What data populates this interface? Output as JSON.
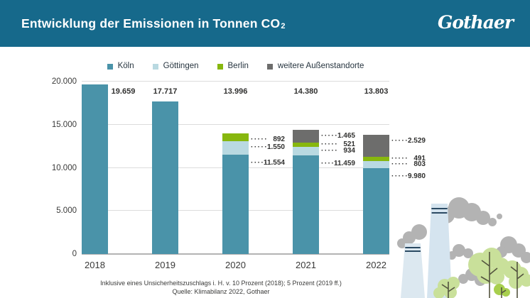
{
  "header": {
    "title": "Entwicklung der Emissionen in Tonnen CO",
    "title_sub": "2",
    "logo": "Gothaer"
  },
  "chart_data": {
    "type": "bar",
    "variant": "stacked",
    "title": "Entwicklung der Emissionen in Tonnen CO₂",
    "categories": [
      "2018",
      "2019",
      "2020",
      "2021",
      "2022"
    ],
    "series": [
      {
        "name": "Köln",
        "color": "#4a93a9",
        "values": [
          19659,
          17717,
          11554,
          11459,
          9980
        ]
      },
      {
        "name": "Göttingen",
        "color": "#b9d9e1",
        "values": [
          0,
          0,
          1550,
          934,
          803
        ]
      },
      {
        "name": "Berlin",
        "color": "#87b70e",
        "values": [
          0,
          0,
          892,
          521,
          491
        ]
      },
      {
        "name": "weitere Außenstandorte",
        "color": "#6d6d6c",
        "values": [
          0,
          0,
          0,
          1465,
          2529
        ]
      }
    ],
    "totals": [
      19659,
      17717,
      13996,
      14380,
      13803
    ],
    "y_ticks": [
      0,
      5000,
      10000,
      15000,
      20000
    ],
    "ylim": [
      0,
      20000
    ],
    "xlabel": "",
    "ylabel": "",
    "grid": true,
    "legend_position": "top",
    "leader_dots": "·····",
    "number_format": "de"
  },
  "footer": {
    "note": "Inklusive eines Unsicherheitszuschlags i. H. v. 10 Prozent (2018); 5 Prozent (2019 ff.)",
    "source": "Quelle: Klimabilanz 2022, Gothaer"
  },
  "colors": {
    "header_bg": "#16698b",
    "text": "#3a3a39",
    "grid": "#dcdcdc",
    "axis": "#b3b3b3"
  }
}
